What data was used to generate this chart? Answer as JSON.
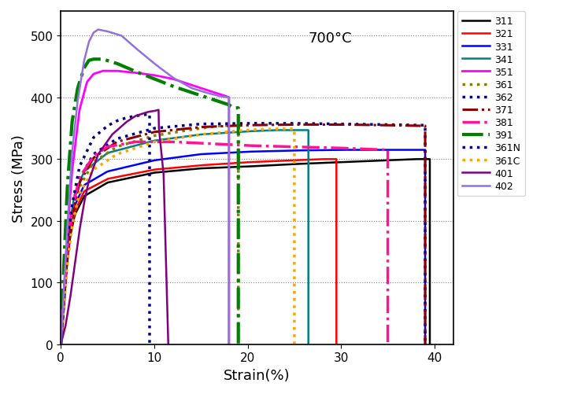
{
  "title": "700°C",
  "xlabel": "Strain(%)",
  "ylabel": "Stress (MPa)",
  "xlim": [
    0,
    42
  ],
  "ylim": [
    0,
    540
  ],
  "xticks": [
    0,
    10,
    20,
    30,
    40
  ],
  "yticks": [
    0,
    100,
    200,
    300,
    400,
    500
  ],
  "annotation": "700°C",
  "series": [
    {
      "label": "311",
      "color": "#000000",
      "linestyle": "solid",
      "linewidth": 1.8,
      "points": [
        [
          0,
          0
        ],
        [
          0.3,
          50
        ],
        [
          0.6,
          120
        ],
        [
          1.0,
          175
        ],
        [
          1.5,
          210
        ],
        [
          2.5,
          240
        ],
        [
          5,
          262
        ],
        [
          10,
          278
        ],
        [
          15,
          285
        ],
        [
          20,
          288
        ],
        [
          25,
          292
        ],
        [
          30,
          295
        ],
        [
          35,
          298
        ],
        [
          38,
          300
        ],
        [
          39.5,
          300
        ],
        [
          39.5,
          0
        ]
      ]
    },
    {
      "label": "321",
      "color": "#ff0000",
      "linestyle": "solid",
      "linewidth": 1.8,
      "points": [
        [
          0,
          0
        ],
        [
          0.3,
          55
        ],
        [
          0.6,
          125
        ],
        [
          1.0,
          180
        ],
        [
          1.5,
          215
        ],
        [
          2.5,
          248
        ],
        [
          5,
          268
        ],
        [
          10,
          283
        ],
        [
          15,
          290
        ],
        [
          20,
          295
        ],
        [
          25,
          298
        ],
        [
          28,
          300
        ],
        [
          29.5,
          300
        ],
        [
          29.5,
          0
        ]
      ]
    },
    {
      "label": "331",
      "color": "#0000ff",
      "linestyle": "solid",
      "linewidth": 1.8,
      "points": [
        [
          0,
          0
        ],
        [
          0.3,
          60
        ],
        [
          0.6,
          130
        ],
        [
          1.0,
          188
        ],
        [
          1.5,
          225
        ],
        [
          2.5,
          258
        ],
        [
          5,
          280
        ],
        [
          10,
          298
        ],
        [
          15,
          308
        ],
        [
          20,
          312
        ],
        [
          25,
          314
        ],
        [
          30,
          315
        ],
        [
          35,
          315
        ],
        [
          38,
          315
        ],
        [
          39,
          315
        ],
        [
          39,
          0
        ]
      ]
    },
    {
      "label": "341",
      "color": "#008080",
      "linestyle": "solid",
      "linewidth": 1.8,
      "points": [
        [
          0,
          0
        ],
        [
          0.3,
          65
        ],
        [
          0.6,
          140
        ],
        [
          1.0,
          200
        ],
        [
          1.5,
          245
        ],
        [
          2.5,
          280
        ],
        [
          5,
          310
        ],
        [
          10,
          330
        ],
        [
          15,
          340
        ],
        [
          20,
          345
        ],
        [
          23,
          347
        ],
        [
          25,
          347
        ],
        [
          26.5,
          347
        ],
        [
          26.5,
          0
        ]
      ]
    },
    {
      "label": "351",
      "color": "#ff00ff",
      "linestyle": "solid",
      "linewidth": 2.0,
      "points": [
        [
          0,
          0
        ],
        [
          0.3,
          80
        ],
        [
          0.7,
          180
        ],
        [
          1.2,
          280
        ],
        [
          2.0,
          380
        ],
        [
          2.8,
          425
        ],
        [
          3.5,
          438
        ],
        [
          4.5,
          443
        ],
        [
          6,
          443
        ],
        [
          8,
          440
        ],
        [
          10,
          436
        ],
        [
          12,
          430
        ],
        [
          14,
          420
        ],
        [
          16,
          410
        ],
        [
          17.5,
          403
        ],
        [
          18,
          400
        ],
        [
          18,
          0
        ]
      ]
    },
    {
      "label": "361",
      "color": "#808000",
      "linestyle": "dotted",
      "linewidth": 2.5,
      "points": [
        [
          0,
          0
        ],
        [
          0.3,
          60
        ],
        [
          0.7,
          140
        ],
        [
          1.2,
          200
        ],
        [
          2.0,
          255
        ],
        [
          3.5,
          295
        ],
        [
          6,
          320
        ],
        [
          10,
          338
        ],
        [
          14,
          348
        ],
        [
          17,
          354
        ],
        [
          18.5,
          355
        ],
        [
          19,
          355
        ],
        [
          19,
          0
        ]
      ]
    },
    {
      "label": "362",
      "color": "#00008b",
      "linestyle": "dotted",
      "linewidth": 2.5,
      "points": [
        [
          0,
          0
        ],
        [
          0.3,
          65
        ],
        [
          0.7,
          148
        ],
        [
          1.2,
          210
        ],
        [
          2.0,
          268
        ],
        [
          3.5,
          308
        ],
        [
          6,
          333
        ],
        [
          10,
          350
        ],
        [
          15,
          357
        ],
        [
          20,
          358
        ],
        [
          25,
          358
        ],
        [
          30,
          357
        ],
        [
          35,
          356
        ],
        [
          38,
          355
        ],
        [
          39,
          355
        ],
        [
          39,
          0
        ]
      ]
    },
    {
      "label": "371",
      "color": "#8b0000",
      "linestyle": "dashdot",
      "linewidth": 2.2,
      "points": [
        [
          0,
          0
        ],
        [
          0.3,
          62
        ],
        [
          0.7,
          145
        ],
        [
          1.2,
          205
        ],
        [
          2.0,
          262
        ],
        [
          3.5,
          302
        ],
        [
          6,
          328
        ],
        [
          10,
          344
        ],
        [
          15,
          352
        ],
        [
          20,
          355
        ],
        [
          25,
          356
        ],
        [
          30,
          356
        ],
        [
          35,
          355
        ],
        [
          38,
          354
        ],
        [
          39,
          354
        ],
        [
          39,
          0
        ]
      ]
    },
    {
      "label": "381",
      "color": "#ff1493",
      "linestyle": "dashdot",
      "linewidth": 2.5,
      "points": [
        [
          0,
          0
        ],
        [
          0.3,
          70
        ],
        [
          0.7,
          155
        ],
        [
          1.2,
          218
        ],
        [
          2.0,
          270
        ],
        [
          3.5,
          305
        ],
        [
          5,
          320
        ],
        [
          8,
          328
        ],
        [
          12,
          328
        ],
        [
          16,
          325
        ],
        [
          20,
          322
        ],
        [
          25,
          320
        ],
        [
          30,
          318
        ],
        [
          33,
          316
        ],
        [
          35,
          315
        ],
        [
          35,
          0
        ]
      ]
    },
    {
      "label": "391",
      "color": "#008000",
      "linestyle": "dashdot",
      "linewidth": 3.0,
      "points": [
        [
          0,
          0
        ],
        [
          0.3,
          120
        ],
        [
          0.7,
          255
        ],
        [
          1.2,
          360
        ],
        [
          1.8,
          415
        ],
        [
          2.5,
          448
        ],
        [
          3.0,
          460
        ],
        [
          3.5,
          462
        ],
        [
          4.5,
          462
        ],
        [
          6,
          455
        ],
        [
          8,
          442
        ],
        [
          10,
          430
        ],
        [
          12,
          418
        ],
        [
          14,
          408
        ],
        [
          16,
          398
        ],
        [
          18,
          388
        ],
        [
          18.5,
          383
        ],
        [
          19,
          383
        ],
        [
          19,
          0
        ]
      ]
    },
    {
      "label": "361N",
      "color": "#000080",
      "linestyle": "dotted",
      "linewidth": 2.5,
      "points": [
        [
          0,
          0
        ],
        [
          0.3,
          68
        ],
        [
          0.7,
          155
        ],
        [
          1.2,
          225
        ],
        [
          2.0,
          288
        ],
        [
          3.5,
          335
        ],
        [
          5,
          354
        ],
        [
          6,
          362
        ],
        [
          7,
          367
        ],
        [
          8,
          370
        ],
        [
          9,
          372
        ],
        [
          9.5,
          373
        ],
        [
          9.5,
          0
        ]
      ]
    },
    {
      "label": "361C",
      "color": "#ffa500",
      "linestyle": "dotted",
      "linewidth": 2.5,
      "points": [
        [
          0,
          0
        ],
        [
          0.3,
          58
        ],
        [
          0.7,
          132
        ],
        [
          1.2,
          192
        ],
        [
          2.0,
          245
        ],
        [
          3.5,
          283
        ],
        [
          6,
          308
        ],
        [
          10,
          328
        ],
        [
          15,
          340
        ],
        [
          19,
          346
        ],
        [
          21,
          348
        ],
        [
          23,
          349
        ],
        [
          25,
          349
        ],
        [
          25,
          0
        ]
      ]
    },
    {
      "label": "401",
      "color": "#800080",
      "linestyle": "solid",
      "linewidth": 1.8,
      "points": [
        [
          0,
          0
        ],
        [
          0.5,
          30
        ],
        [
          1.0,
          75
        ],
        [
          1.5,
          130
        ],
        [
          2.0,
          185
        ],
        [
          2.5,
          230
        ],
        [
          3.0,
          265
        ],
        [
          4.0,
          308
        ],
        [
          5.5,
          340
        ],
        [
          7.0,
          360
        ],
        [
          8.0,
          370
        ],
        [
          9.0,
          375
        ],
        [
          9.5,
          377
        ],
        [
          10.0,
          378
        ],
        [
          10.5,
          380
        ],
        [
          10.5,
          350
        ],
        [
          11.0,
          275
        ],
        [
          11.5,
          0
        ]
      ]
    },
    {
      "label": "402",
      "color": "#9370db",
      "linestyle": "solid",
      "linewidth": 1.8,
      "points": [
        [
          0,
          0
        ],
        [
          0.3,
          80
        ],
        [
          0.7,
          190
        ],
        [
          1.2,
          310
        ],
        [
          1.8,
          395
        ],
        [
          2.5,
          460
        ],
        [
          3.0,
          490
        ],
        [
          3.5,
          505
        ],
        [
          4.0,
          510
        ],
        [
          5.0,
          507
        ],
        [
          6.5,
          500
        ],
        [
          8.0,
          480
        ],
        [
          10.0,
          455
        ],
        [
          12.0,
          432
        ],
        [
          14.0,
          415
        ],
        [
          15.5,
          408
        ],
        [
          17.0,
          402
        ],
        [
          18.0,
          400
        ],
        [
          18.0,
          0
        ]
      ]
    }
  ]
}
